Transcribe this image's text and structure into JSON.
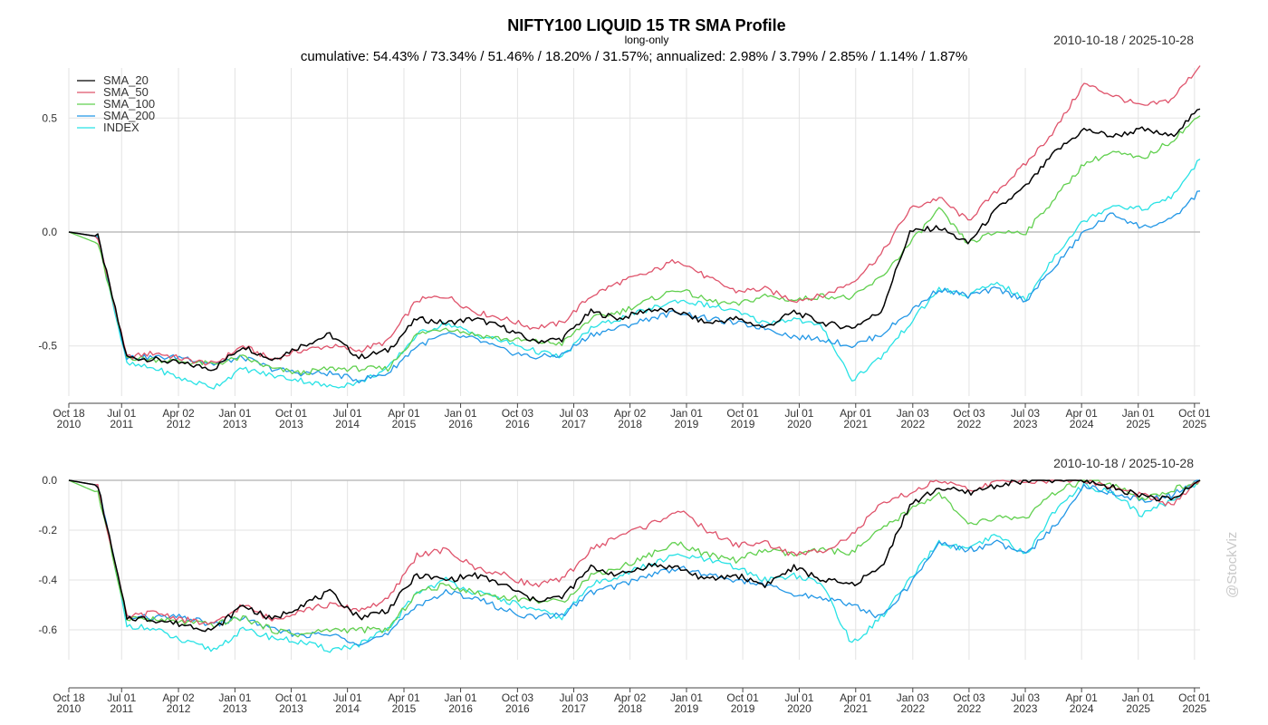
{
  "header": {
    "title": "NIFTY100 LIQUID 15 TR SMA Profile",
    "subtitle": "long-only",
    "summary": "cumulative: 54.43% / 73.34% / 51.46% / 18.20% / 31.57%; annualized: 2.98% / 3.79% / 2.85% / 1.14% / 1.87%",
    "date_range_top": "2010-10-18 / 2025-10-28",
    "date_range_bottom": "2010-10-18 / 2025-10-28",
    "watermark": "@StockViz"
  },
  "chart_data": [
    {
      "type": "line",
      "panel": "cumulative returns",
      "ylim": [
        -0.72,
        0.72
      ],
      "grid": true,
      "legend_placement": "top-left",
      "x_ticks": [
        {
          "date": "2010-10-18",
          "line1": "Oct 18",
          "line2": "2010"
        },
        {
          "date": "2011-07-01",
          "line1": "Jul 01",
          "line2": "2011"
        },
        {
          "date": "2012-04-02",
          "line1": "Apr 02",
          "line2": "2012"
        },
        {
          "date": "2013-01-01",
          "line1": "Jan 01",
          "line2": "2013"
        },
        {
          "date": "2013-10-01",
          "line1": "Oct 01",
          "line2": "2013"
        },
        {
          "date": "2014-07-01",
          "line1": "Jul 01",
          "line2": "2014"
        },
        {
          "date": "2015-04-01",
          "line1": "Apr 01",
          "line2": "2015"
        },
        {
          "date": "2016-01-01",
          "line1": "Jan 01",
          "line2": "2016"
        },
        {
          "date": "2016-10-03",
          "line1": "Oct 03",
          "line2": "2016"
        },
        {
          "date": "2017-07-03",
          "line1": "Jul 03",
          "line2": "2017"
        },
        {
          "date": "2018-04-02",
          "line1": "Apr 02",
          "line2": "2018"
        },
        {
          "date": "2019-01-01",
          "line1": "Jan 01",
          "line2": "2019"
        },
        {
          "date": "2019-10-01",
          "line1": "Oct 01",
          "line2": "2019"
        },
        {
          "date": "2020-07-01",
          "line1": "Jul 01",
          "line2": "2020"
        },
        {
          "date": "2021-04-01",
          "line1": "Apr 01",
          "line2": "2021"
        },
        {
          "date": "2022-01-03",
          "line1": "Jan 03",
          "line2": "2022"
        },
        {
          "date": "2022-10-03",
          "line1": "Oct 03",
          "line2": "2022"
        },
        {
          "date": "2023-07-03",
          "line1": "Jul 03",
          "line2": "2023"
        },
        {
          "date": "2024-04-01",
          "line1": "Apr 01",
          "line2": "2024"
        },
        {
          "date": "2025-01-01",
          "line1": "Jan 01",
          "line2": "2025"
        },
        {
          "date": "2025-10-01",
          "line1": "Oct 01",
          "line2": "2025"
        }
      ],
      "y_ticks": [
        {
          "value": 0.5,
          "label": "0.5"
        },
        {
          "value": 0.0,
          "label": "0.0"
        },
        {
          "value": -0.5,
          "label": "-0.5"
        }
      ],
      "series": [
        {
          "name": "SMA_20",
          "color": "#000000",
          "values": [
            0,
            -0.02,
            -0.55,
            -0.56,
            -0.58,
            -0.6,
            -0.5,
            -0.56,
            -0.5,
            -0.45,
            -0.55,
            -0.52,
            -0.38,
            -0.4,
            -0.38,
            -0.42,
            -0.48,
            -0.47,
            -0.35,
            -0.38,
            -0.34,
            -0.35,
            -0.4,
            -0.38,
            -0.42,
            -0.35,
            -0.4,
            -0.42,
            -0.35,
            0.0,
            0.02,
            -0.05,
            0.1,
            0.2,
            0.35,
            0.45,
            0.42,
            0.45,
            0.42,
            0.54
          ]
        },
        {
          "name": "SMA_50",
          "color": "#df536b",
          "values": [
            0,
            -0.02,
            -0.55,
            -0.53,
            -0.56,
            -0.58,
            -0.5,
            -0.56,
            -0.52,
            -0.5,
            -0.52,
            -0.48,
            -0.3,
            -0.28,
            -0.35,
            -0.38,
            -0.42,
            -0.4,
            -0.28,
            -0.22,
            -0.18,
            -0.12,
            -0.2,
            -0.26,
            -0.25,
            -0.3,
            -0.28,
            -0.22,
            -0.1,
            0.1,
            0.15,
            0.05,
            0.18,
            0.3,
            0.45,
            0.65,
            0.6,
            0.55,
            0.58,
            0.73
          ]
        },
        {
          "name": "SMA_100",
          "color": "#61d04f",
          "values": [
            0,
            -0.05,
            -0.55,
            -0.56,
            -0.57,
            -0.58,
            -0.55,
            -0.6,
            -0.62,
            -0.6,
            -0.6,
            -0.6,
            -0.45,
            -0.42,
            -0.45,
            -0.47,
            -0.48,
            -0.49,
            -0.38,
            -0.35,
            -0.3,
            -0.25,
            -0.3,
            -0.32,
            -0.28,
            -0.3,
            -0.28,
            -0.29,
            -0.2,
            -0.05,
            0.1,
            -0.05,
            0.0,
            0.0,
            0.15,
            0.3,
            0.35,
            0.32,
            0.4,
            0.51
          ]
        },
        {
          "name": "SMA_200",
          "color": "#2297e6",
          "values": [
            0,
            -0.02,
            -0.55,
            -0.55,
            -0.55,
            -0.58,
            -0.55,
            -0.6,
            -0.62,
            -0.62,
            -0.65,
            -0.62,
            -0.5,
            -0.45,
            -0.47,
            -0.52,
            -0.55,
            -0.54,
            -0.45,
            -0.42,
            -0.38,
            -0.35,
            -0.38,
            -0.4,
            -0.42,
            -0.46,
            -0.47,
            -0.5,
            -0.45,
            -0.35,
            -0.25,
            -0.28,
            -0.25,
            -0.3,
            -0.15,
            0.0,
            0.08,
            0.02,
            0.05,
            0.18
          ]
        },
        {
          "name": "INDEX",
          "color": "#28e2e5",
          "values": [
            0,
            -0.02,
            -0.58,
            -0.6,
            -0.65,
            -0.68,
            -0.6,
            -0.63,
            -0.65,
            -0.68,
            -0.66,
            -0.6,
            -0.45,
            -0.4,
            -0.45,
            -0.48,
            -0.52,
            -0.55,
            -0.42,
            -0.38,
            -0.34,
            -0.3,
            -0.32,
            -0.35,
            -0.4,
            -0.38,
            -0.42,
            -0.65,
            -0.55,
            -0.4,
            -0.25,
            -0.28,
            -0.22,
            -0.3,
            -0.1,
            0.05,
            0.12,
            0.1,
            0.15,
            0.32
          ]
        }
      ]
    },
    {
      "type": "line",
      "panel": "drawdowns",
      "ylim": [
        -0.72,
        0.0
      ],
      "grid": true,
      "x_ticks": "same as panel 1",
      "y_ticks": [
        {
          "value": 0.0,
          "label": "0.0"
        },
        {
          "value": -0.2,
          "label": "-0.2"
        },
        {
          "value": -0.4,
          "label": "-0.4"
        },
        {
          "value": -0.6,
          "label": "-0.6"
        }
      ],
      "series": [
        {
          "name": "SMA_20",
          "color": "#000000",
          "values": [
            0,
            -0.02,
            -0.55,
            -0.56,
            -0.58,
            -0.6,
            -0.5,
            -0.56,
            -0.5,
            -0.45,
            -0.55,
            -0.52,
            -0.38,
            -0.4,
            -0.38,
            -0.42,
            -0.48,
            -0.47,
            -0.35,
            -0.38,
            -0.34,
            -0.35,
            -0.4,
            -0.38,
            -0.42,
            -0.35,
            -0.4,
            -0.42,
            -0.35,
            -0.1,
            -0.03,
            -0.05,
            -0.02,
            0,
            0,
            0,
            -0.03,
            -0.06,
            -0.08,
            0
          ]
        },
        {
          "name": "SMA_50",
          "color": "#df536b",
          "values": [
            0,
            -0.02,
            -0.55,
            -0.53,
            -0.56,
            -0.58,
            -0.5,
            -0.56,
            -0.52,
            -0.5,
            -0.52,
            -0.48,
            -0.3,
            -0.28,
            -0.35,
            -0.38,
            -0.42,
            -0.4,
            -0.28,
            -0.22,
            -0.18,
            -0.12,
            -0.2,
            -0.26,
            -0.25,
            -0.3,
            -0.28,
            -0.22,
            -0.1,
            -0.05,
            0,
            -0.04,
            -0.01,
            0,
            0,
            0,
            -0.03,
            -0.06,
            -0.1,
            0
          ]
        },
        {
          "name": "SMA_100",
          "color": "#61d04f",
          "values": [
            0,
            -0.05,
            -0.55,
            -0.56,
            -0.57,
            -0.58,
            -0.55,
            -0.6,
            -0.62,
            -0.6,
            -0.6,
            -0.6,
            -0.45,
            -0.42,
            -0.45,
            -0.47,
            -0.48,
            -0.49,
            -0.38,
            -0.35,
            -0.3,
            -0.25,
            -0.3,
            -0.32,
            -0.28,
            -0.3,
            -0.28,
            -0.29,
            -0.2,
            -0.12,
            -0.05,
            -0.18,
            -0.15,
            -0.15,
            -0.05,
            0,
            -0.02,
            -0.08,
            -0.04,
            0
          ]
        },
        {
          "name": "SMA_200",
          "color": "#2297e6",
          "values": [
            0,
            -0.02,
            -0.55,
            -0.55,
            -0.55,
            -0.58,
            -0.55,
            -0.6,
            -0.62,
            -0.62,
            -0.65,
            -0.62,
            -0.5,
            -0.45,
            -0.47,
            -0.52,
            -0.55,
            -0.54,
            -0.45,
            -0.42,
            -0.38,
            -0.35,
            -0.38,
            -0.4,
            -0.42,
            -0.46,
            -0.47,
            -0.5,
            -0.55,
            -0.42,
            -0.25,
            -0.28,
            -0.25,
            -0.3,
            -0.18,
            -0.02,
            -0.05,
            -0.08,
            -0.06,
            0
          ]
        },
        {
          "name": "INDEX",
          "color": "#28e2e5",
          "values": [
            0,
            -0.02,
            -0.58,
            -0.6,
            -0.65,
            -0.68,
            -0.6,
            -0.63,
            -0.65,
            -0.68,
            -0.66,
            -0.6,
            -0.45,
            -0.4,
            -0.45,
            -0.48,
            -0.52,
            -0.55,
            -0.42,
            -0.38,
            -0.34,
            -0.3,
            -0.32,
            -0.35,
            -0.4,
            -0.38,
            -0.42,
            -0.66,
            -0.55,
            -0.4,
            -0.25,
            -0.28,
            -0.22,
            -0.3,
            -0.12,
            -0.02,
            -0.05,
            -0.14,
            -0.08,
            0
          ]
        }
      ]
    }
  ]
}
